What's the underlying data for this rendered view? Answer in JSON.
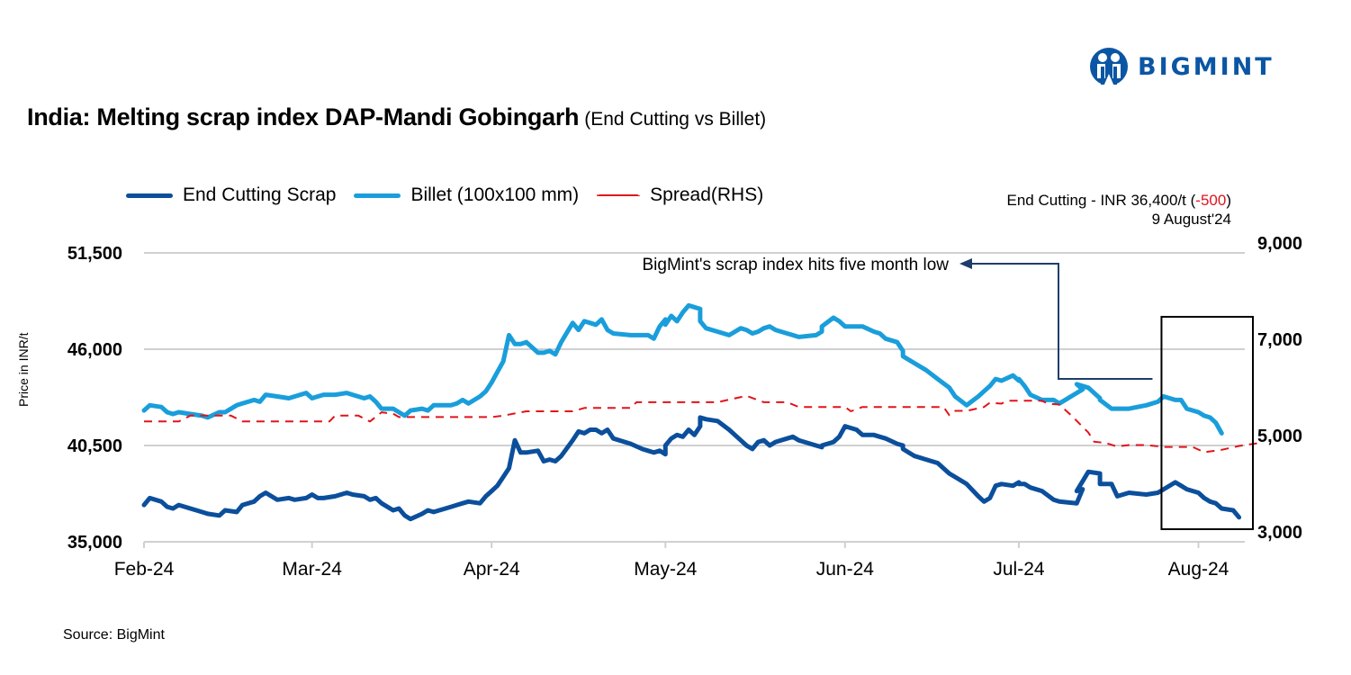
{
  "brand": {
    "name": "BIGMINT",
    "logo_icon": "bigmint-people-logo",
    "color": "#0b56a4"
  },
  "title": {
    "main": "India: Melting scrap index DAP-Mandi Gobingarh",
    "sub": "(End Cutting vs Billet)"
  },
  "note": {
    "line1_prefix": "End Cutting - INR 36,400/t (",
    "line1_change": "-500",
    "line1_suffix": ")",
    "line2": "9 August'24"
  },
  "source": "Source: BigMint",
  "colors": {
    "end_cutting": "#0b4f9c",
    "billet": "#1a9edb",
    "spread": "#e0141b",
    "grid": "#d0d0d0",
    "annotation": "#1f3d6b"
  },
  "chart_data": {
    "type": "line",
    "title": "India: Melting scrap index DAP-Mandi Gobingarh (End Cutting vs Billet)",
    "xlabel": "",
    "ylabel": "Price in INR/t",
    "y2label": "",
    "ylim": [
      35000,
      51500
    ],
    "yticks": [
      "35,000",
      "40,500",
      "46,000",
      "51,500"
    ],
    "ytick_values": [
      35000,
      40500,
      46000,
      51500
    ],
    "y2lim": [
      3000,
      9000
    ],
    "y2ticks": [
      "3,000",
      "5,000",
      "7,000",
      "9,000"
    ],
    "y2tick_values": [
      3000,
      5000,
      7000,
      9000
    ],
    "xlim": [
      "2024-02-01",
      "2024-08-09"
    ],
    "xticks": [
      {
        "label": "Feb-24",
        "date": "2024-02-01"
      },
      {
        "label": "Mar-24",
        "date": "2024-03-01"
      },
      {
        "label": "Apr-24",
        "date": "2024-04-01"
      },
      {
        "label": "May-24",
        "date": "2024-05-01"
      },
      {
        "label": "Jun-24",
        "date": "2024-06-01"
      },
      {
        "label": "Jul-24",
        "date": "2024-07-01"
      },
      {
        "label": "Aug-24",
        "date": "2024-08-01"
      }
    ],
    "grid": true,
    "legend": "top-left",
    "series": [
      {
        "name": "End Cutting Scrap",
        "axis": "left",
        "style": "solid",
        "days": [
          0,
          1,
          3,
          4,
          5,
          6,
          8,
          10,
          11,
          13,
          14,
          16,
          17,
          19,
          20,
          21,
          23,
          25,
          26,
          28,
          29,
          30,
          31,
          33,
          35,
          36,
          38,
          39,
          40,
          41,
          43,
          44,
          45,
          46,
          48,
          49,
          50,
          53,
          54,
          55,
          56,
          58,
          59,
          60,
          61,
          62,
          63,
          64,
          65,
          66,
          68,
          69,
          70,
          71,
          72,
          74,
          75,
          76,
          77,
          78,
          79,
          80,
          81,
          84,
          86,
          87,
          88,
          89,
          90,
          90,
          91,
          92,
          93,
          94,
          95,
          96,
          96,
          97,
          99,
          101,
          103,
          104,
          105,
          106,
          107,
          108,
          109,
          111,
          112,
          113,
          116,
          117,
          117,
          119,
          120,
          121,
          123,
          124,
          126,
          127,
          128,
          130,
          131,
          131,
          133,
          135,
          137,
          139,
          140,
          142,
          144,
          145,
          146,
          147,
          148,
          150,
          151,
          151,
          152,
          153,
          155,
          157,
          158,
          161,
          162,
          161,
          163,
          165,
          165,
          167,
          168,
          170,
          173,
          175,
          176,
          178,
          179,
          180,
          182,
          183,
          184,
          185,
          186,
          188,
          189,
          191,
          192,
          193
        ],
        "values": [
          37100,
          37500,
          37300,
          37000,
          36900,
          37100,
          36900,
          36700,
          36600,
          36500,
          36800,
          36700,
          37100,
          37300,
          37600,
          37800,
          37400,
          37500,
          37400,
          37500,
          37700,
          37500,
          37500,
          37600,
          37800,
          37700,
          37600,
          37400,
          37500,
          37200,
          36800,
          36900,
          36500,
          36300,
          36600,
          36800,
          36700,
          37000,
          37100,
          37200,
          37300,
          37200,
          37600,
          37900,
          38200,
          38700,
          39200,
          40800,
          40100,
          40100,
          40200,
          39600,
          39700,
          39600,
          39900,
          40800,
          41300,
          41200,
          41400,
          41400,
          41200,
          41400,
          40900,
          40600,
          40300,
          40200,
          40100,
          40200,
          40000,
          40500,
          40900,
          41100,
          41000,
          41400,
          41100,
          41600,
          42100,
          42000,
          41900,
          41400,
          40800,
          40500,
          40300,
          40700,
          40800,
          40500,
          40700,
          40900,
          41000,
          40800,
          40500,
          40400,
          40500,
          40700,
          41000,
          41600,
          41400,
          41100,
          41100,
          41000,
          40900,
          40600,
          40500,
          40300,
          39900,
          39700,
          39500,
          38900,
          38700,
          38300,
          37600,
          37300,
          37500,
          38200,
          38300,
          38200,
          38400,
          38300,
          38300,
          38100,
          37900,
          37400,
          37300,
          37200,
          38000,
          37900,
          39000,
          38900,
          38300,
          38300,
          37600,
          37800,
          37700,
          37800,
          38000,
          38400,
          38200,
          38000,
          37800,
          37500,
          37300,
          37200,
          36900,
          36800,
          36400
        ]
      },
      {
        "name": "Billet (100x100 mm)",
        "axis": "left",
        "style": "solid",
        "days": [
          0,
          1,
          3,
          4,
          5,
          6,
          8,
          10,
          11,
          13,
          14,
          16,
          17,
          19,
          20,
          21,
          23,
          25,
          26,
          28,
          29,
          30,
          31,
          33,
          35,
          36,
          38,
          39,
          40,
          41,
          43,
          44,
          45,
          46,
          48,
          49,
          50,
          53,
          54,
          55,
          56,
          58,
          59,
          60,
          61,
          62,
          63,
          64,
          65,
          66,
          68,
          69,
          70,
          71,
          72,
          74,
          75,
          76,
          77,
          78,
          79,
          80,
          81,
          84,
          86,
          87,
          88,
          89,
          90,
          90,
          91,
          92,
          93,
          94,
          95,
          96,
          96,
          97,
          99,
          101,
          103,
          104,
          105,
          106,
          107,
          108,
          109,
          111,
          112,
          113,
          116,
          117,
          117,
          119,
          120,
          121,
          123,
          124,
          126,
          127,
          128,
          130,
          131,
          131,
          133,
          135,
          137,
          139,
          140,
          142,
          144,
          145,
          146,
          147,
          148,
          150,
          151,
          151,
          152,
          153,
          155,
          157,
          158,
          161,
          162,
          161,
          163,
          165,
          165,
          167,
          168,
          170,
          173,
          175,
          176,
          178,
          179,
          180,
          182,
          183,
          184,
          185,
          186,
          188,
          189,
          191,
          192,
          193
        ],
        "values": [
          42500,
          42800,
          42700,
          42400,
          42300,
          42400,
          42300,
          42200,
          42100,
          42400,
          42400,
          42800,
          42900,
          43100,
          43000,
          43400,
          43300,
          43200,
          43300,
          43500,
          43200,
          43300,
          43400,
          43400,
          43500,
          43400,
          43200,
          43300,
          43000,
          42600,
          42600,
          42400,
          42200,
          42500,
          42600,
          42500,
          42800,
          42800,
          42900,
          43100,
          42900,
          43300,
          43600,
          44100,
          44700,
          45300,
          46800,
          46300,
          46300,
          46400,
          45800,
          45800,
          45900,
          45700,
          46400,
          47500,
          47100,
          47600,
          47500,
          47400,
          47700,
          47100,
          46900,
          46800,
          46800,
          46800,
          46600,
          47300,
          47700,
          47400,
          47900,
          47600,
          48100,
          48500,
          48400,
          48300,
          47600,
          47200,
          47000,
          46800,
          47200,
          47100,
          46900,
          47000,
          47200,
          47300,
          47100,
          46900,
          46800,
          46700,
          46800,
          47000,
          47300,
          47800,
          47600,
          47300,
          47300,
          47300,
          47000,
          46900,
          46600,
          46400,
          45900,
          45600,
          45200,
          44800,
          44300,
          43800,
          43300,
          42800,
          43300,
          43600,
          43900,
          44300,
          44200,
          44500,
          44200,
          44300,
          43900,
          43400,
          43100,
          43100,
          42900,
          43500,
          43700,
          44000,
          43800,
          43200,
          43100,
          42600,
          42600,
          42600,
          42800,
          43000,
          43300,
          43100,
          43100,
          42600,
          42400,
          42200,
          42100,
          41800,
          41200
        ]
      },
      {
        "name": "Spread(RHS)",
        "axis": "right",
        "style": "dashed",
        "days": [
          0,
          6,
          8,
          15,
          17,
          32,
          33,
          37,
          39,
          41,
          43,
          44,
          46,
          60,
          62,
          66,
          74,
          76,
          84,
          85,
          90,
          99,
          102,
          104,
          107,
          111,
          113,
          121,
          122,
          124,
          129,
          138,
          139,
          140,
          142,
          145,
          146,
          148,
          149,
          150,
          155,
          156,
          158,
          160,
          163,
          164,
          166,
          168,
          170,
          173,
          176,
          178,
          181,
          183,
          186,
          189,
          193
        ],
        "values": [
          5500,
          5500,
          5620,
          5620,
          5500,
          5500,
          5620,
          5620,
          5500,
          5690,
          5660,
          5590,
          5590,
          5590,
          5620,
          5710,
          5710,
          5780,
          5780,
          5900,
          5900,
          5900,
          5980,
          6030,
          5900,
          5900,
          5800,
          5800,
          5710,
          5800,
          5800,
          5800,
          5630,
          5720,
          5720,
          5800,
          5890,
          5870,
          5930,
          5930,
          5930,
          5870,
          5850,
          5630,
          5270,
          5080,
          5050,
          4980,
          5010,
          5010,
          4970,
          4970,
          4970,
          4860,
          4910,
          4990,
          5060
        ]
      }
    ],
    "annotations": [
      {
        "text": "BigMint's scrap index hits five month low",
        "type": "arrow-callout",
        "target": "highlight box late Jul–Aug 2024"
      },
      {
        "text": "highlight box",
        "type": "rectangle",
        "range": [
          "2024-07-25",
          "2024-08-09"
        ]
      }
    ]
  }
}
